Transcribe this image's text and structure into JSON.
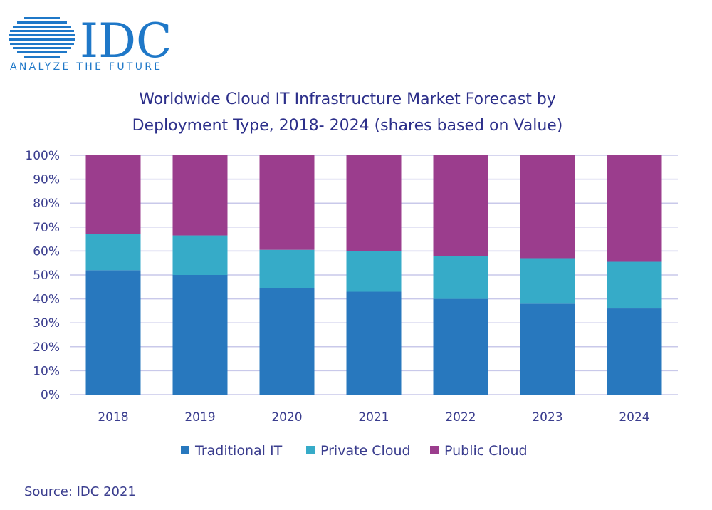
{
  "logo": {
    "wordmark": "IDC",
    "tagline": "ANALYZE THE FUTURE",
    "color": "#1f78c8"
  },
  "source_text": "Source: IDC 2021",
  "chart_data": {
    "type": "bar",
    "stacked": true,
    "title_lines": [
      "Worldwide Cloud IT Infrastructure Market Forecast by",
      "Deployment Type, 2018- 2024 (shares based on Value)"
    ],
    "categories": [
      "2018",
      "2019",
      "2020",
      "2021",
      "2022",
      "2023",
      "2024"
    ],
    "series": [
      {
        "name": "Traditional IT",
        "color": "#2878be",
        "values": [
          52,
          50,
          44.5,
          43,
          40,
          38,
          36
        ]
      },
      {
        "name": "Private Cloud",
        "color": "#36abc8",
        "values": [
          15,
          16.5,
          16,
          17,
          18,
          19,
          19.5
        ]
      },
      {
        "name": "Public Cloud",
        "color": "#9b3d8d",
        "values": [
          33,
          33.5,
          39.5,
          40,
          42,
          43,
          44.5
        ]
      }
    ],
    "ylim": [
      0,
      100
    ],
    "yticks": [
      "0%",
      "10%",
      "20%",
      "30%",
      "40%",
      "50%",
      "60%",
      "70%",
      "80%",
      "90%",
      "100%"
    ],
    "grid": true,
    "legend_position": "bottom"
  }
}
